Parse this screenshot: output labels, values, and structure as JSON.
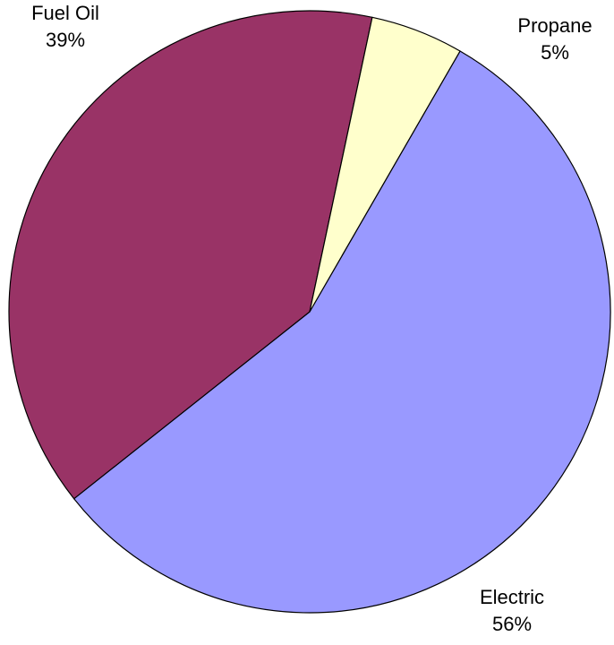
{
  "chart_data": {
    "type": "pie",
    "title": "",
    "slices": [
      {
        "label": "Electric",
        "value": 56,
        "display": "56%",
        "color": "#9999FF"
      },
      {
        "label": "Fuel Oil",
        "value": 39,
        "display": "39%",
        "color": "#993366"
      },
      {
        "label": "Propane",
        "value": 5,
        "display": "5%",
        "color": "#FFFFCC"
      }
    ],
    "legend": "none",
    "labels_outside": true
  }
}
